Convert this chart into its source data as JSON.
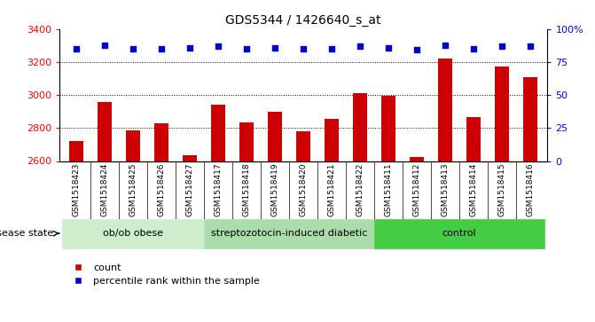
{
  "title": "GDS5344 / 1426640_s_at",
  "samples": [
    "GSM1518423",
    "GSM1518424",
    "GSM1518425",
    "GSM1518426",
    "GSM1518427",
    "GSM1518417",
    "GSM1518418",
    "GSM1518419",
    "GSM1518420",
    "GSM1518421",
    "GSM1518422",
    "GSM1518411",
    "GSM1518412",
    "GSM1518413",
    "GSM1518414",
    "GSM1518415",
    "GSM1518416"
  ],
  "counts": [
    2720,
    2960,
    2785,
    2830,
    2635,
    2940,
    2835,
    2900,
    2780,
    2855,
    3010,
    2995,
    2625,
    3220,
    2865,
    3175,
    3110
  ],
  "percentile_ranks": [
    85,
    88,
    85,
    85,
    86,
    87,
    85,
    86,
    85,
    85,
    87,
    86,
    84,
    88,
    85,
    87,
    87
  ],
  "groups": [
    {
      "label": "ob/ob obese",
      "start": 0,
      "end": 5,
      "color": "#cceecc"
    },
    {
      "label": "streptozotocin-induced diabetic",
      "start": 5,
      "end": 11,
      "color": "#aaddaa"
    },
    {
      "label": "control",
      "start": 11,
      "end": 17,
      "color": "#44cc44"
    }
  ],
  "bar_color": "#cc0000",
  "dot_color": "#0000cc",
  "ylim_left": [
    2600,
    3400
  ],
  "ylim_right": [
    0,
    100
  ],
  "yticks_left": [
    2600,
    2800,
    3000,
    3200,
    3400
  ],
  "yticks_right": [
    0,
    25,
    50,
    75,
    100
  ],
  "ytick_labels_right": [
    "0",
    "25",
    "50",
    "75",
    "100%"
  ],
  "plot_bg_color": "#ffffff",
  "xtick_bg_color": "#d0d0d0",
  "fig_bg_color": "#ffffff",
  "grid_color": "#000000",
  "legend_count_label": "count",
  "legend_pct_label": "percentile rank within the sample",
  "disease_state_label": "disease state"
}
